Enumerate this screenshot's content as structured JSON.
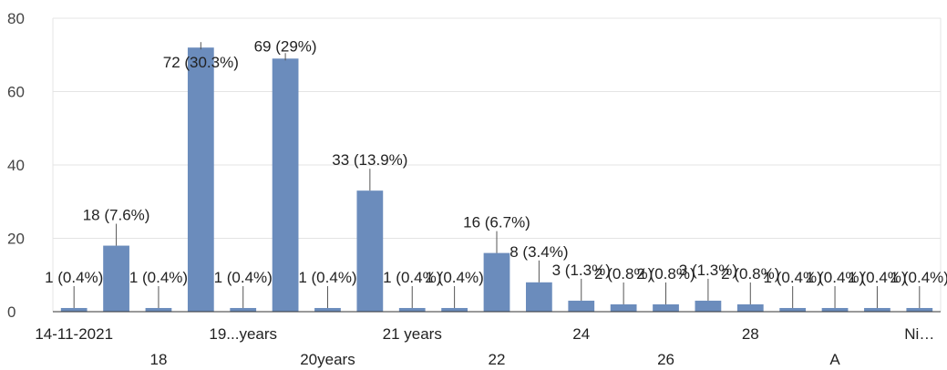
{
  "chart_data": {
    "type": "bar",
    "categories": [
      "14-11-2021",
      "18",
      "18",
      "19...years",
      "19...years",
      "20years",
      "20years",
      "21 years",
      "21 years",
      "22",
      "22",
      "24",
      "24",
      "26",
      "26",
      "28",
      "28",
      "A",
      "A",
      "Ni…",
      "Ni…"
    ],
    "values": [
      1,
      18,
      1,
      72,
      1,
      69,
      1,
      33,
      1,
      1,
      16,
      8,
      3,
      2,
      2,
      3,
      2,
      1,
      1,
      1,
      1
    ],
    "data_labels": [
      "1 (0.4%)",
      "18 (7.6%)",
      "1 (0.4%)",
      "72 (30.3%)",
      "1 (0.4%)",
      "69 (29%)",
      "1 (0.4%)",
      "33 (13.9%)",
      "1 (0.4%)",
      "1 (0.4%)",
      "16 (6.7%)",
      "8 (3.4%)",
      "3 (1.3%)",
      "2 (0.8%)",
      "2 (0.8%)",
      "3 (1.3%)",
      "2 (0.8%)",
      "1 (0.4%)",
      "1 (0.4%)",
      "1 (0.4%)",
      "1 (0.4%)"
    ],
    "x_tick_labels": [
      "14-11-2021",
      "18",
      "19...years",
      "20years",
      "21 years",
      "22",
      "24",
      "26",
      "28",
      "A",
      "Ni…"
    ],
    "y_ticks": [
      0,
      20,
      40,
      60,
      80
    ],
    "ylim": [
      0,
      80
    ],
    "grid": true,
    "bar_color": "#6b8cbc",
    "title": "",
    "xlabel": "",
    "ylabel": ""
  }
}
